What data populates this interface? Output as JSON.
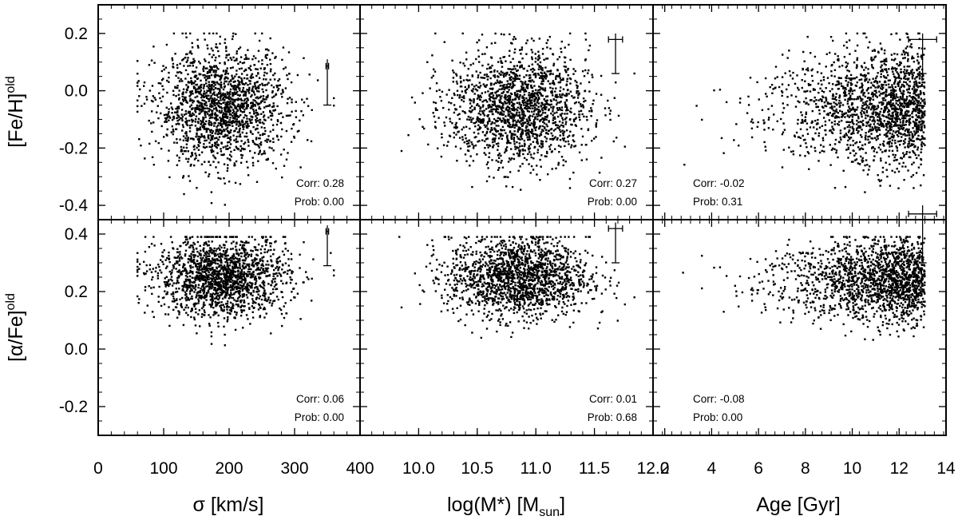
{
  "figure": {
    "columns": [
      {
        "xlabel_main": "σ [km/s]",
        "xlim": [
          0,
          400
        ],
        "xticks": [
          0,
          100,
          200,
          300,
          400
        ],
        "xtick_labels": [
          "0",
          "100",
          "200",
          "300",
          "400"
        ]
      },
      {
        "xlabel_main": "log(M*) [M",
        "xlabel_sub": "sun",
        "xlabel_end": "]",
        "xlim": [
          9.5,
          12.0
        ],
        "xticks": [
          10.0,
          10.5,
          11.0,
          11.5,
          12.0
        ],
        "xtick_labels": [
          "10.0",
          "10.5",
          "11.0",
          "11.5",
          "12.0"
        ]
      },
      {
        "xlabel_main": "Age [Gyr]",
        "xlim": [
          1.5,
          14
        ],
        "xticks": [
          2,
          4,
          6,
          8,
          10,
          12,
          14
        ],
        "xtick_labels": [
          "2",
          "4",
          "6",
          "8",
          "10",
          "12",
          "14"
        ]
      }
    ],
    "rows": [
      {
        "ylabel_main": "[Fe/H]",
        "ylabel_sup": "old",
        "ylim": [
          -0.45,
          0.3
        ],
        "yticks": [
          -0.4,
          -0.2,
          0.0,
          0.2
        ],
        "ytick_labels": [
          "-0.4",
          "-0.2",
          "0.0",
          "0.2"
        ]
      },
      {
        "ylabel_main": "[α/Fe]",
        "ylabel_sup": "old",
        "ylim": [
          -0.3,
          0.45
        ],
        "yticks": [
          -0.2,
          0.0,
          0.2,
          0.4
        ],
        "ytick_labels": [
          "-0.2",
          "0.0",
          "0.2",
          "0.4"
        ]
      }
    ]
  },
  "chart_data": [
    {
      "type": "scatter",
      "row": 0,
      "col": 0,
      "xlabel": "σ [km/s]",
      "ylabel": "[Fe/H]old",
      "distribution": {
        "n": 1700,
        "x_center": 190,
        "x_sigma": 50,
        "x_min": 60,
        "x_max": 360,
        "y_center": -0.06,
        "y_sigma": 0.1,
        "y_min": -0.42,
        "y_max": 0.2
      },
      "stats": {
        "corr_label": "Corr:",
        "corr_value": "0.28",
        "prob_label": "Prob:",
        "prob_value": "0.00"
      },
      "error_bar": {
        "x": 350,
        "y_center": 0.03,
        "y_half": 0.08,
        "x_half": 2
      }
    },
    {
      "type": "scatter",
      "row": 0,
      "col": 1,
      "xlabel": "log(M*) [Msun]",
      "ylabel": "[Fe/H]old",
      "distribution": {
        "n": 1700,
        "x_center": 10.85,
        "x_sigma": 0.3,
        "x_min": 9.6,
        "x_max": 11.9,
        "y_center": -0.06,
        "y_sigma": 0.1,
        "y_min": -0.42,
        "y_max": 0.2
      },
      "stats": {
        "corr_label": "Corr:",
        "corr_value": "0.27",
        "prob_label": "Prob:",
        "prob_value": "0.00"
      },
      "error_bar": {
        "x": 11.68,
        "y_center": 0.13,
        "y_half": 0.07,
        "x_half": 0.06
      }
    },
    {
      "type": "scatter",
      "row": 0,
      "col": 2,
      "xlabel": "Age [Gyr]",
      "ylabel": "[Fe/H]old",
      "distribution": {
        "n": 1700,
        "x_center": 10.3,
        "x_sigma": 2.4,
        "x_min": 2.0,
        "x_max": 13.1,
        "y_center": -0.06,
        "y_sigma": 0.1,
        "y_min": -0.42,
        "y_max": 0.2
      },
      "stats": {
        "corr_label": "Corr:",
        "corr_value": "-0.02",
        "prob_label": "Prob:",
        "prob_value": "0.31"
      },
      "error_bar": {
        "x": 13.0,
        "y_center": 0.13,
        "y_half": 0.07,
        "x_half": 0.6
      }
    },
    {
      "type": "scatter",
      "row": 1,
      "col": 0,
      "xlabel": "σ [km/s]",
      "ylabel": "[α/Fe]old",
      "distribution": {
        "n": 1700,
        "x_center": 190,
        "x_sigma": 50,
        "x_min": 60,
        "x_max": 360,
        "y_center": 0.25,
        "y_sigma": 0.07,
        "y_min": -0.17,
        "y_max": 0.39
      },
      "stats": {
        "corr_label": "Corr:",
        "corr_value": "0.06",
        "prob_label": "Prob:",
        "prob_value": "0.00"
      },
      "error_bar": {
        "x": 350,
        "y_center": 0.36,
        "y_half": 0.07,
        "x_half": 2
      }
    },
    {
      "type": "scatter",
      "row": 1,
      "col": 1,
      "xlabel": "log(M*) [Msun]",
      "ylabel": "[α/Fe]old",
      "distribution": {
        "n": 1700,
        "x_center": 10.85,
        "x_sigma": 0.3,
        "x_min": 9.6,
        "x_max": 11.9,
        "y_center": 0.25,
        "y_sigma": 0.07,
        "y_min": -0.17,
        "y_max": 0.39
      },
      "stats": {
        "corr_label": "Corr:",
        "corr_value": "0.01",
        "prob_label": "Prob:",
        "prob_value": "0.68"
      },
      "error_bar": {
        "x": 11.68,
        "y_center": 0.37,
        "y_half": 0.07,
        "x_half": 0.06
      }
    },
    {
      "type": "scatter",
      "row": 1,
      "col": 2,
      "xlabel": "Age [Gyr]",
      "ylabel": "[α/Fe]old",
      "distribution": {
        "n": 1700,
        "x_center": 10.3,
        "x_sigma": 2.4,
        "x_min": 2.0,
        "x_max": 13.1,
        "y_center": 0.24,
        "y_sigma": 0.07,
        "y_min": -0.17,
        "y_max": 0.39
      },
      "stats": {
        "corr_label": "Corr:",
        "corr_value": "-0.08",
        "prob_label": "Prob:",
        "prob_value": "0.00"
      },
      "error_bar": {
        "x": 13.0,
        "y_center": 0.4,
        "y_half": 0.1,
        "x_half": 0.6
      }
    }
  ]
}
